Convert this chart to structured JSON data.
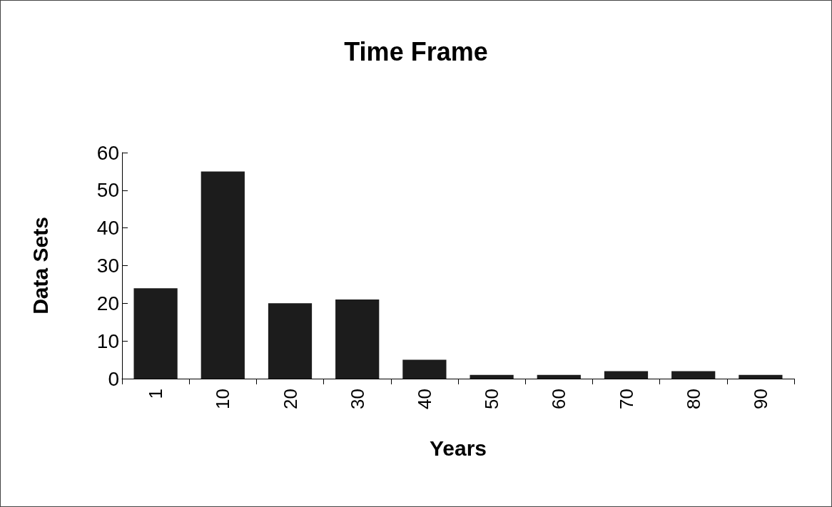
{
  "chart_data": {
    "type": "bar",
    "title": "Time Frame",
    "xlabel": "Years",
    "ylabel": "Data Sets",
    "categories": [
      "1",
      "10",
      "20",
      "30",
      "40",
      "50",
      "60",
      "70",
      "80",
      "90"
    ],
    "values": [
      24,
      55,
      20,
      21,
      5,
      1,
      1,
      2,
      2,
      1
    ],
    "color": "#1c1c1c",
    "ylim": [
      0,
      60
    ],
    "yticks": [
      0,
      10,
      20,
      30,
      40,
      50,
      60
    ],
    "grid": false
  }
}
